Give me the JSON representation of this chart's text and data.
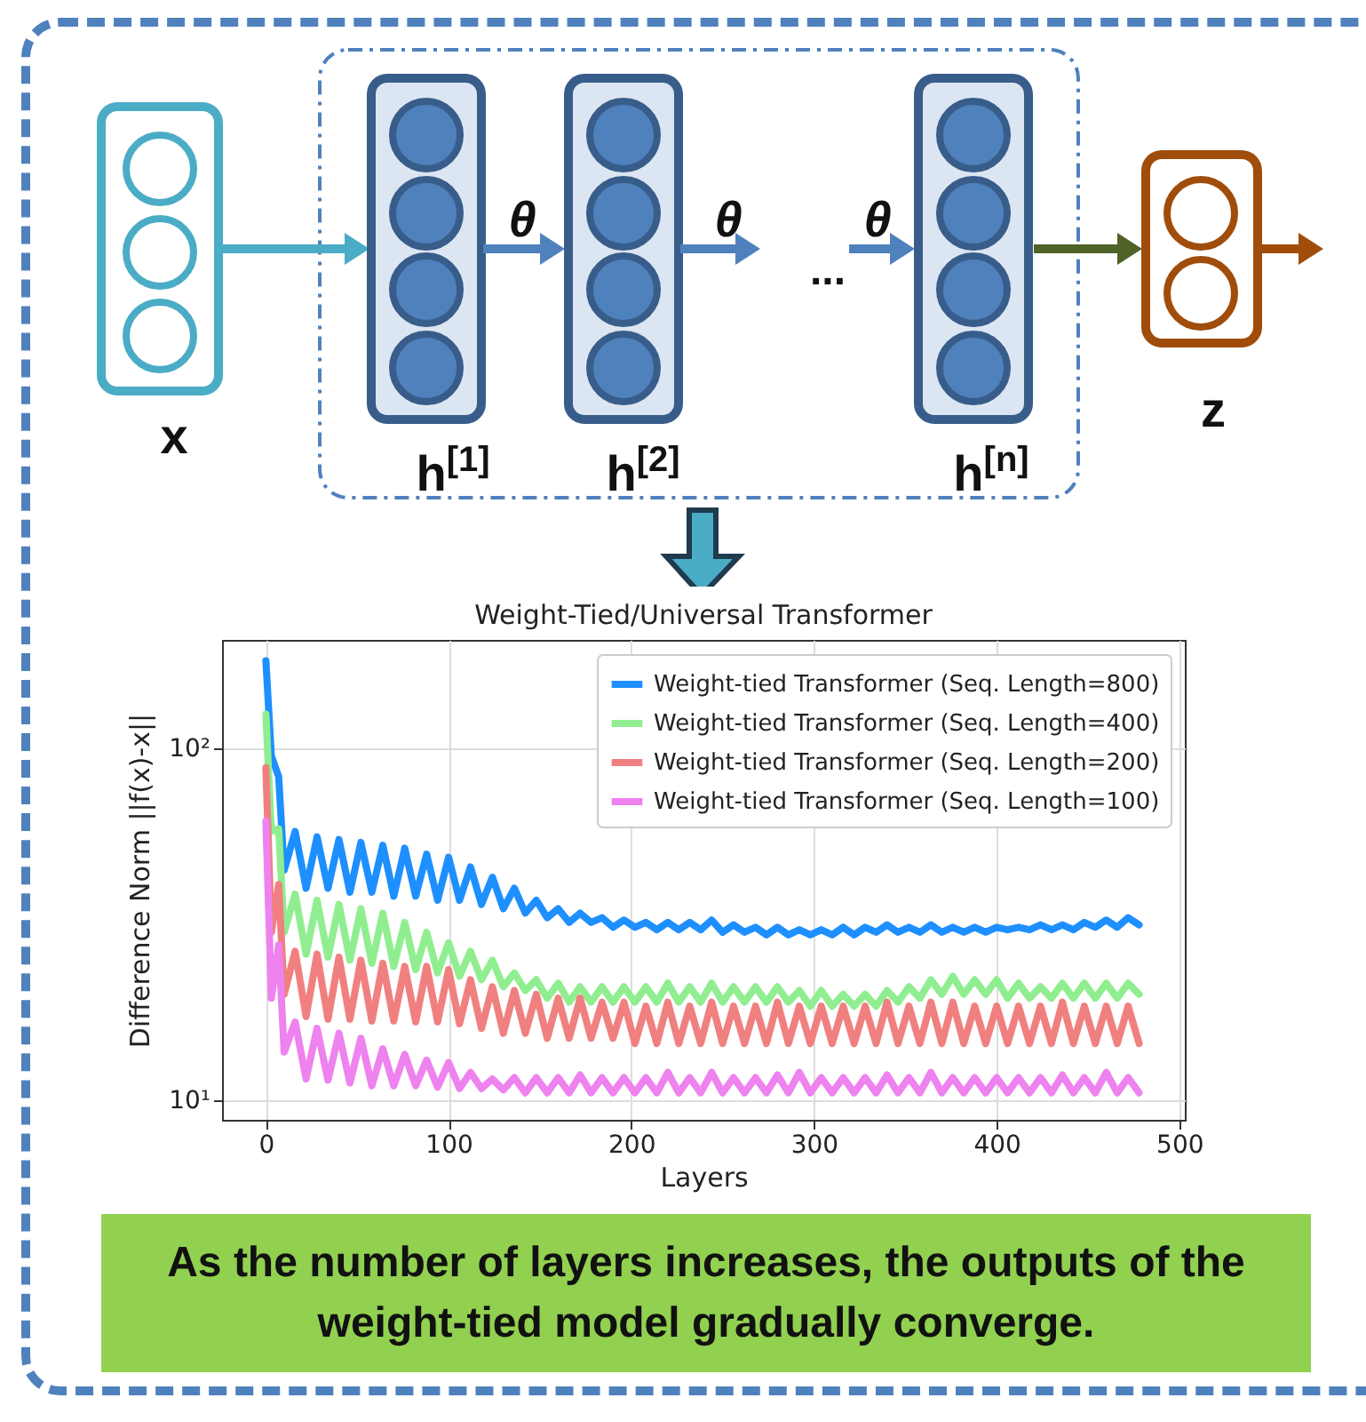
{
  "chart_data": {
    "type": "line",
    "title": "Weight-Tied/Universal Transformer",
    "xlabel": "Layers",
    "ylabel": "Difference Norm ||f(x)-x||",
    "x": [
      0,
      3,
      7,
      10,
      16,
      22,
      28,
      34,
      40,
      46,
      52,
      58,
      64,
      70,
      76,
      82,
      88,
      94,
      100,
      106,
      112,
      118,
      124,
      130,
      136,
      142,
      148,
      154,
      160,
      166,
      172,
      178,
      184,
      190,
      196,
      202,
      208,
      214,
      220,
      226,
      232,
      238,
      244,
      250,
      256,
      262,
      268,
      274,
      280,
      286,
      292,
      298,
      304,
      310,
      316,
      322,
      328,
      334,
      340,
      346,
      352,
      358,
      364,
      370,
      376,
      382,
      388,
      394,
      400,
      406,
      412,
      418,
      424,
      430,
      436,
      442,
      448,
      454,
      460,
      466,
      472,
      478
    ],
    "series": [
      {
        "name": "Weight-tied Transformer (Seq. Length=800)",
        "color": "#1e8fff",
        "values": [
          177,
          95,
          83,
          45,
          58,
          40,
          56,
          40,
          55,
          39,
          54,
          39,
          53,
          38,
          52,
          38,
          50,
          37,
          49,
          37,
          46,
          36,
          43,
          35,
          40,
          34,
          37,
          33,
          35,
          32,
          34,
          32,
          33,
          31,
          32.5,
          31,
          32,
          30.5,
          32,
          30.5,
          32,
          30.5,
          32.5,
          30,
          31.5,
          30,
          31,
          29.5,
          31,
          29.5,
          30.5,
          29.5,
          30.5,
          29.5,
          31,
          29.5,
          31,
          30,
          31.5,
          30,
          31,
          30,
          31.5,
          30,
          31,
          30,
          31,
          30,
          31,
          30.5,
          31,
          30.5,
          31.5,
          30.5,
          31.5,
          30.5,
          32,
          31,
          32.5,
          31,
          33,
          31.5
        ]
      },
      {
        "name": "Weight-tied Transformer (Seq. Length=400)",
        "color": "#90ee90",
        "values": [
          125,
          58,
          59,
          30,
          38.5,
          26,
          37,
          25.5,
          36,
          25,
          35,
          24.5,
          34,
          24,
          32,
          23.5,
          30,
          23,
          28,
          22.5,
          26.5,
          22,
          25,
          21,
          23,
          20.5,
          22,
          19.5,
          21.5,
          19,
          21,
          19,
          21,
          19,
          21,
          19,
          21,
          19,
          21.5,
          19,
          21,
          19,
          21.5,
          19,
          21,
          19,
          21,
          19,
          21,
          19,
          20.5,
          18.5,
          20.5,
          18.5,
          20,
          18.5,
          20,
          18.5,
          20.5,
          19,
          21,
          19.5,
          22,
          20,
          22.5,
          20,
          22,
          20,
          22,
          19.5,
          21.5,
          19.5,
          21,
          19.5,
          21.5,
          19.5,
          21.5,
          19.5,
          21.5,
          19.5,
          21.5,
          20
        ]
      },
      {
        "name": "Weight-tied Transformer (Seq. Length=200)",
        "color": "#f08080",
        "values": [
          88,
          30,
          41,
          20,
          26.5,
          17.3,
          26,
          17,
          25.5,
          17,
          25,
          16.8,
          24.5,
          16.8,
          24,
          16.7,
          24,
          16.7,
          23.5,
          16.5,
          22,
          16,
          21,
          15.5,
          20.5,
          15.5,
          20,
          15,
          19.5,
          15,
          19.5,
          15,
          19,
          15,
          19,
          14.5,
          18.5,
          14.5,
          19,
          14.5,
          18.5,
          14.5,
          19,
          14.5,
          18.5,
          14.5,
          18.5,
          14.5,
          19,
          14.5,
          18.5,
          14.5,
          18.5,
          14.5,
          18.5,
          14.5,
          18.5,
          14.5,
          19,
          14.5,
          18.5,
          14.5,
          19,
          14.5,
          19,
          14.5,
          18.5,
          14.5,
          18.5,
          14.5,
          18.5,
          14.5,
          18.5,
          14.5,
          19,
          14.5,
          18.5,
          14.5,
          18.5,
          14.5,
          18.5,
          14.5
        ]
      },
      {
        "name": "Weight-tied Transformer (Seq. Length=100)",
        "color": "#ee82ee",
        "values": [
          62,
          19.5,
          27.6,
          13.7,
          16.7,
          11.5,
          16,
          11.4,
          15.5,
          11.2,
          15,
          11,
          14,
          11,
          13.5,
          11,
          13,
          10.9,
          12.8,
          10.8,
          12,
          10.8,
          11.5,
          10.7,
          11.6,
          10.5,
          11.6,
          10.5,
          11.6,
          10.5,
          11.8,
          10.5,
          11.6,
          10.5,
          11.6,
          10.5,
          11.6,
          10.5,
          12,
          10.5,
          11.6,
          10.5,
          12,
          10.5,
          11.6,
          10.5,
          11.6,
          10.5,
          11.8,
          10.5,
          12,
          10.5,
          11.6,
          10.5,
          11.6,
          10.5,
          11.6,
          10.5,
          11.8,
          10.5,
          11.6,
          10.5,
          12,
          10.5,
          11.6,
          10.5,
          11.6,
          10.5,
          11.6,
          10.5,
          11.6,
          10.5,
          11.6,
          10.5,
          11.8,
          10.5,
          11.6,
          10.5,
          12,
          10.5,
          11.6,
          10.5
        ]
      }
    ],
    "xlim": [
      -24,
      503
    ],
    "xticks": [
      0,
      100,
      200,
      300,
      400,
      500
    ],
    "ylim": [
      8.8,
      203
    ],
    "yticks": [
      {
        "value": 10,
        "label": "10¹"
      },
      {
        "value": 100,
        "label": "10²"
      }
    ],
    "log": "y",
    "grid": true,
    "legend": "top right",
    "annotations": [
      "x",
      "h$^{[1]}$",
      "h$^{[2]}$",
      "h$^{[n]}$",
      "θ",
      "θ",
      "θ",
      "...",
      "z",
      "As the number of layers increases, the outputs of the weight-tied model gradually converge."
    ]
  }
}
